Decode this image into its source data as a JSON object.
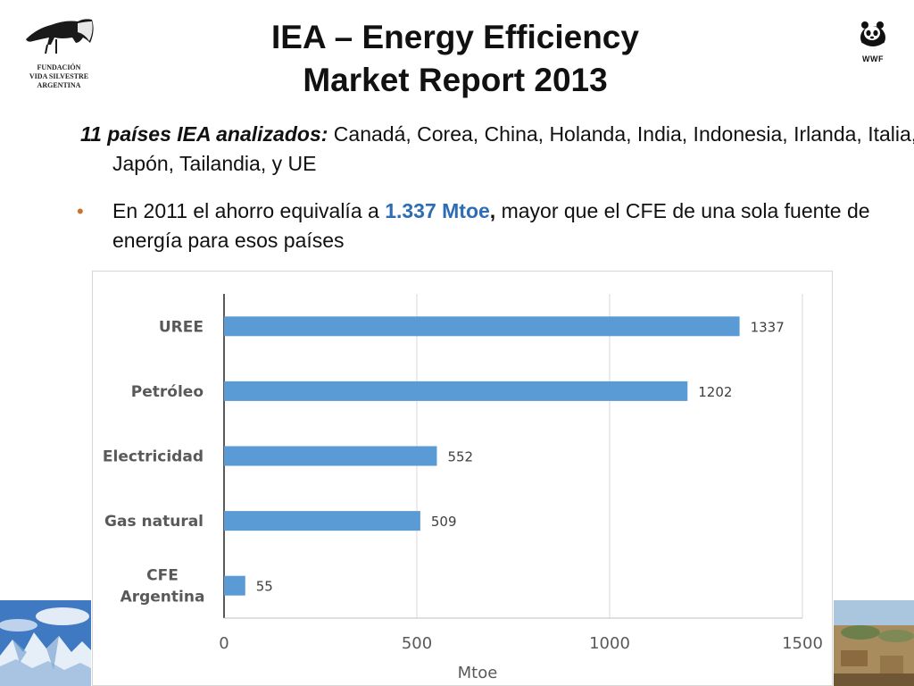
{
  "logos": {
    "left": {
      "icon": "anteater-logo-icon",
      "lines": [
        "FUNDACIÓN",
        "VIDA SILVESTRE",
        "ARGENTINA"
      ]
    },
    "right": {
      "icon": "panda-logo-icon",
      "text": "WWF"
    }
  },
  "title": {
    "line1": "IEA – Energy Efficiency",
    "line2": "Market Report 2013"
  },
  "paragraph1": {
    "lead": "11 países IEA analizados:",
    "rest": " Canadá, Corea, China, Holanda, India, Indonesia, Irlanda, Italia, Japón, Tailandia, y UE"
  },
  "paragraph2": {
    "prefix": "En 2011 el ahorro equivalía a ",
    "highlight": "1.337 Mtoe",
    "comma": ",",
    "suffix": " mayor que el CFE de una sola fuente de energía para esos países"
  },
  "colors": {
    "bar": "#5b9bd5",
    "bullet": "#c8742c",
    "highlight": "#2e6db4"
  },
  "chart_data": {
    "type": "bar",
    "orientation": "horizontal",
    "categories": [
      "UREE",
      "Petróleo",
      "Electricidad",
      "Gas natural",
      "CFE\nArgentina"
    ],
    "values": [
      1337,
      1202,
      552,
      509,
      55
    ],
    "data_labels": [
      "1337",
      "1202",
      "552",
      "509",
      "55"
    ],
    "xlabel": "Mtoe",
    "xlim": [
      0,
      1500
    ],
    "xticks": [
      "0",
      "500",
      "1000",
      "1500"
    ],
    "grid": true
  }
}
